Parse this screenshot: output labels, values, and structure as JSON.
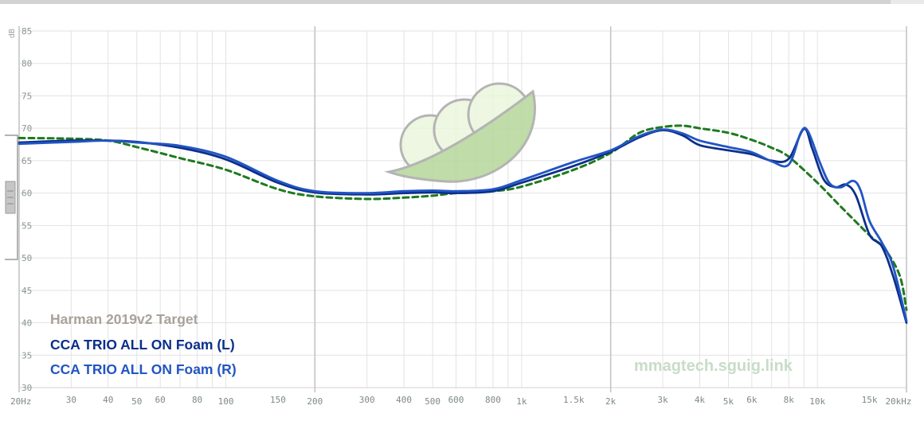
{
  "chart_data": {
    "type": "line",
    "ylabel": "dB",
    "ylim": [
      30,
      85
    ],
    "xlim": [
      20,
      20000
    ],
    "x_scale": "log",
    "y_ticks": [
      30,
      35,
      40,
      45,
      50,
      55,
      60,
      65,
      70,
      75,
      80,
      85
    ],
    "x_ticks": [
      {
        "value": 20,
        "label": "20Hz"
      },
      {
        "value": 30,
        "label": "30"
      },
      {
        "value": 40,
        "label": "40"
      },
      {
        "value": 50,
        "label": "50"
      },
      {
        "value": 60,
        "label": "60"
      },
      {
        "value": 80,
        "label": "80"
      },
      {
        "value": 100,
        "label": "100"
      },
      {
        "value": 150,
        "label": "150"
      },
      {
        "value": 200,
        "label": "200"
      },
      {
        "value": 300,
        "label": "300"
      },
      {
        "value": 400,
        "label": "400"
      },
      {
        "value": 500,
        "label": "500"
      },
      {
        "value": 600,
        "label": "600"
      },
      {
        "value": 800,
        "label": "800"
      },
      {
        "value": 1000,
        "label": "1k"
      },
      {
        "value": 1500,
        "label": "1.5k"
      },
      {
        "value": 2000,
        "label": "2k"
      },
      {
        "value": 3000,
        "label": "3k"
      },
      {
        "value": 4000,
        "label": "4k"
      },
      {
        "value": 5000,
        "label": "5k"
      },
      {
        "value": 6000,
        "label": "6k"
      },
      {
        "value": 8000,
        "label": "8k"
      },
      {
        "value": 10000,
        "label": "10k"
      },
      {
        "value": 15000,
        "label": "15k"
      },
      {
        "value": 20000,
        "label": "20kHz"
      }
    ],
    "grid": true,
    "legend_position": "bottom-left",
    "series": [
      {
        "name": "Harman 2019v2 Target",
        "color": "#1f7a1f",
        "dash": true,
        "points": [
          [
            20,
            68.5
          ],
          [
            30,
            68.4
          ],
          [
            40,
            68.1
          ],
          [
            50,
            67.1
          ],
          [
            70,
            65.4
          ],
          [
            100,
            63.6
          ],
          [
            150,
            60.6
          ],
          [
            200,
            59.5
          ],
          [
            300,
            59.1
          ],
          [
            400,
            59.3
          ],
          [
            500,
            59.6
          ],
          [
            600,
            60.0
          ],
          [
            800,
            60.3
          ],
          [
            1000,
            61.0
          ],
          [
            1500,
            63.6
          ],
          [
            2000,
            66.2
          ],
          [
            2500,
            69.3
          ],
          [
            3000,
            70.2
          ],
          [
            3500,
            70.4
          ],
          [
            4000,
            70.0
          ],
          [
            5000,
            69.3
          ],
          [
            6000,
            68.2
          ],
          [
            7000,
            67.0
          ],
          [
            8000,
            65.6
          ],
          [
            10000,
            61.6
          ],
          [
            12000,
            57.9
          ],
          [
            15000,
            53.5
          ],
          [
            17000,
            51.2
          ],
          [
            19000,
            47.2
          ],
          [
            20000,
            42.0
          ]
        ]
      },
      {
        "name": "CCA TRIO ALL ON Foam (L)",
        "color": "#0b2f8a",
        "dash": false,
        "points": [
          [
            20,
            67.8
          ],
          [
            30,
            68.1
          ],
          [
            40,
            68.1
          ],
          [
            50,
            67.9
          ],
          [
            70,
            67.0
          ],
          [
            100,
            65.2
          ],
          [
            150,
            61.6
          ],
          [
            200,
            60.1
          ],
          [
            300,
            59.8
          ],
          [
            400,
            60.0
          ],
          [
            500,
            60.1
          ],
          [
            600,
            60.0
          ],
          [
            800,
            60.3
          ],
          [
            1000,
            61.6
          ],
          [
            1500,
            64.2
          ],
          [
            2000,
            66.4
          ],
          [
            2500,
            68.6
          ],
          [
            3000,
            69.7
          ],
          [
            3500,
            68.9
          ],
          [
            4000,
            67.4
          ],
          [
            5000,
            66.6
          ],
          [
            6000,
            66.0
          ],
          [
            7000,
            65.0
          ],
          [
            8000,
            65.3
          ],
          [
            9000,
            69.9
          ],
          [
            9600,
            66.9
          ],
          [
            10500,
            62.1
          ],
          [
            11500,
            60.9
          ],
          [
            12500,
            61.3
          ],
          [
            13500,
            59.6
          ],
          [
            15000,
            53.6
          ],
          [
            16500,
            51.8
          ],
          [
            18000,
            47.3
          ],
          [
            20000,
            40.0
          ]
        ]
      },
      {
        "name": "CCA TRIO ALL ON Foam (R)",
        "color": "#2255c4",
        "dash": false,
        "points": [
          [
            20,
            67.6
          ],
          [
            30,
            67.9
          ],
          [
            40,
            68.1
          ],
          [
            50,
            67.8
          ],
          [
            70,
            67.3
          ],
          [
            100,
            65.6
          ],
          [
            150,
            61.9
          ],
          [
            200,
            60.3
          ],
          [
            300,
            60.0
          ],
          [
            400,
            60.3
          ],
          [
            500,
            60.4
          ],
          [
            600,
            60.3
          ],
          [
            800,
            60.6
          ],
          [
            1000,
            62.0
          ],
          [
            1500,
            64.8
          ],
          [
            2000,
            66.6
          ],
          [
            2500,
            68.8
          ],
          [
            3000,
            69.8
          ],
          [
            3500,
            69.2
          ],
          [
            4000,
            68.1
          ],
          [
            5000,
            67.1
          ],
          [
            6000,
            66.3
          ],
          [
            7000,
            64.9
          ],
          [
            8000,
            64.4
          ],
          [
            8800,
            69.4
          ],
          [
            9300,
            69.5
          ],
          [
            10200,
            64.7
          ],
          [
            11000,
            61.5
          ],
          [
            12000,
            60.9
          ],
          [
            13200,
            61.9
          ],
          [
            14000,
            60.4
          ],
          [
            15000,
            55.7
          ],
          [
            16500,
            52.4
          ],
          [
            18000,
            48.8
          ],
          [
            20000,
            40.3
          ]
        ]
      }
    ],
    "watermark": "mmagtech.sguig.link",
    "logo_name": "squiglink-peapod-logo"
  }
}
